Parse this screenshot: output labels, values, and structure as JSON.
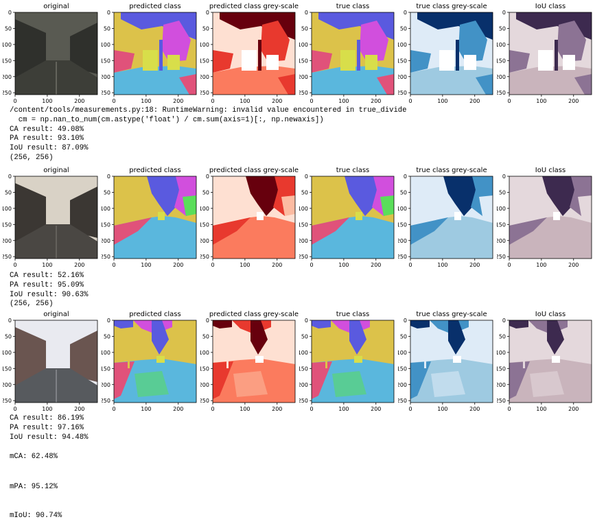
{
  "figures": [
    {
      "panels": [
        {
          "title": "original",
          "kind": "photo",
          "variant": 0
        },
        {
          "title": "predicted class",
          "kind": "pred",
          "variant": 0
        },
        {
          "title": "predicted class grey-scale",
          "kind": "reds",
          "variant": 0
        },
        {
          "title": "true class",
          "kind": "pred",
          "variant": 0
        },
        {
          "title": "true class grey-scale",
          "kind": "blues",
          "variant": 0
        },
        {
          "title": "IoU class",
          "kind": "iou",
          "variant": 0
        }
      ],
      "xticks": [
        "0",
        "100",
        "200"
      ],
      "yticks": [
        "0",
        "50",
        "100",
        "150",
        "200",
        "250"
      ]
    },
    {
      "panels": [
        {
          "title": "original",
          "kind": "photo",
          "variant": 1
        },
        {
          "title": "predicted class",
          "kind": "pred",
          "variant": 1
        },
        {
          "title": "predicted class grey-scale",
          "kind": "reds",
          "variant": 1
        },
        {
          "title": "true class",
          "kind": "pred",
          "variant": 1
        },
        {
          "title": "true class grey-scale",
          "kind": "blues",
          "variant": 1
        },
        {
          "title": "IoU class",
          "kind": "iou",
          "variant": 1
        }
      ],
      "xticks": [
        "0",
        "100",
        "200"
      ],
      "yticks": [
        "0",
        "50",
        "100",
        "150",
        "200",
        "250"
      ]
    },
    {
      "panels": [
        {
          "title": "original",
          "kind": "photo",
          "variant": 2
        },
        {
          "title": "predicted class",
          "kind": "pred",
          "variant": 2
        },
        {
          "title": "predicted class grey-scale",
          "kind": "reds",
          "variant": 2
        },
        {
          "title": "true class",
          "kind": "pred",
          "variant": 2
        },
        {
          "title": "true class grey-scale",
          "kind": "blues",
          "variant": 2
        },
        {
          "title": "IoU class",
          "kind": "iou",
          "variant": 2
        }
      ],
      "xticks": [
        "0",
        "100",
        "200"
      ],
      "yticks": [
        "0",
        "50",
        "100",
        "150",
        "200",
        "250"
      ]
    }
  ],
  "outputs": [
    {
      "warning": [
        "/content/tools/measurements.py:18: RuntimeWarning: invalid value encountered in true_divide",
        "  cm = np.nan_to_num(cm.astype('float') / cm.sum(axis=1)[:, np.newaxis])"
      ],
      "lines": [
        "CA result: 49.08%",
        "PA result: 93.10%",
        "IoU result: 87.09%",
        "(256, 256)"
      ]
    },
    {
      "lines": [
        "CA result: 52.16%",
        "PA result: 95.09%",
        "IoU result: 90.63%",
        "(256, 256)"
      ]
    },
    {
      "lines": [
        "CA result: 86.19%",
        "PA result: 97.16%",
        "IoU result: 94.48%"
      ]
    }
  ],
  "summary": {
    "mca": "mCA: 62.48%",
    "mpa": "mPA: 95.12%",
    "miou": "mIoU: 90.74%"
  },
  "colors": {
    "sky": "#5a5adf",
    "building": "#dcc24a",
    "tree": "#d14fdd",
    "road": "#5ab7dd",
    "sidewalk": "#e0527a",
    "car": "#d8de4a",
    "grass": "#5ade5a",
    "reds_dark": "#67000d",
    "reds_mid": "#e8392e",
    "reds_light": "#fcbba1",
    "reds_pale": "#fee0d2",
    "reds_salmon": "#fb7b5e",
    "blues_dark": "#08306b",
    "blues_mid": "#4292c6",
    "blues_light": "#deebf7",
    "blues_sky": "#9ecae1",
    "iou_dark": "#3d2a4f",
    "iou_mid": "#8c7394",
    "iou_light": "#e4d8dc",
    "iou_pale": "#c9b4bc"
  }
}
